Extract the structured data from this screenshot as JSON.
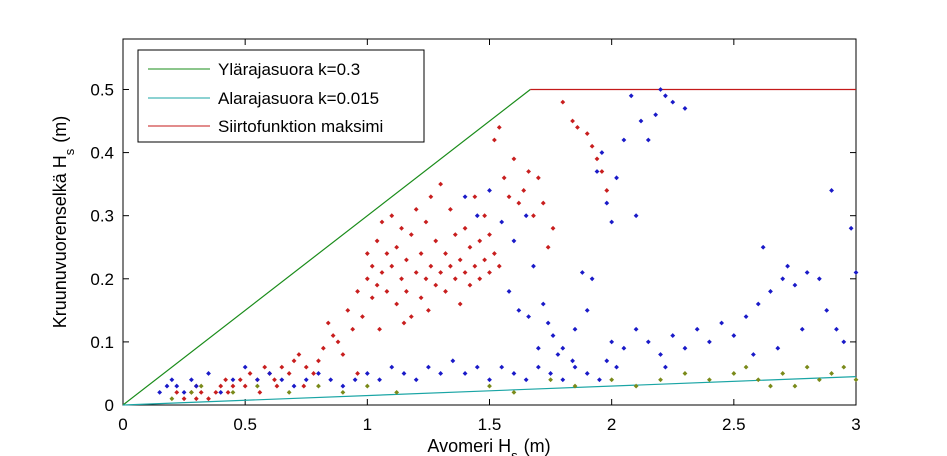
{
  "chart_data": {
    "type": "scatter",
    "title": "",
    "xlabel": "Avomeri H",
    "xlabel_sub": "s",
    "xlabel_unit": "(m)",
    "ylabel": "Kruunuvuorenselkä H",
    "ylabel_sub": "s",
    "ylabel_unit": "(m)",
    "xlim": [
      0,
      3
    ],
    "ylim": [
      0,
      0.58
    ],
    "xticks": [
      0,
      0.5,
      1,
      1.5,
      2,
      2.5,
      3
    ],
    "xtick_labels": [
      "0",
      "0.5",
      "1",
      "1.5",
      "2",
      "2.5",
      "3"
    ],
    "yticks": [
      0,
      0.1,
      0.2,
      0.3,
      0.4,
      0.5
    ],
    "ytick_labels": [
      "0",
      "0.1",
      "0.2",
      "0.3",
      "0.4",
      "0.5"
    ],
    "grid": false,
    "legend_position": "top-left",
    "lines": [
      {
        "name": "Ylärajasuora k=0.3",
        "color": "#1a8c1a",
        "x": [
          0,
          1.667
        ],
        "y": [
          0,
          0.5
        ]
      },
      {
        "name": "Alarajasuora k=0.015",
        "color": "#1aa5a5",
        "x": [
          0,
          3
        ],
        "y": [
          0,
          0.045
        ]
      },
      {
        "name": "Siirtofunktion maksimi",
        "color": "#c41a1a",
        "x": [
          1.667,
          3
        ],
        "y": [
          0.5,
          0.5
        ]
      }
    ],
    "scatter_series": [
      {
        "color": "#c81e1e",
        "points": [
          [
            0.22,
            0.02
          ],
          [
            0.25,
            0.01
          ],
          [
            0.28,
            0.02
          ],
          [
            0.3,
            0.01
          ],
          [
            0.32,
            0.02
          ],
          [
            0.35,
            0.01
          ],
          [
            0.38,
            0.02
          ],
          [
            0.4,
            0.03
          ],
          [
            0.42,
            0.04
          ],
          [
            0.45,
            0.03
          ],
          [
            0.48,
            0.04
          ],
          [
            0.5,
            0.03
          ],
          [
            0.52,
            0.05
          ],
          [
            0.55,
            0.04
          ],
          [
            0.58,
            0.06
          ],
          [
            0.6,
            0.05
          ],
          [
            0.62,
            0.04
          ],
          [
            0.65,
            0.06
          ],
          [
            0.68,
            0.05
          ],
          [
            0.7,
            0.07
          ],
          [
            0.72,
            0.08
          ],
          [
            0.75,
            0.06
          ],
          [
            0.78,
            0.05
          ],
          [
            0.8,
            0.07
          ],
          [
            0.82,
            0.09
          ],
          [
            0.84,
            0.13
          ],
          [
            0.86,
            0.11
          ],
          [
            0.88,
            0.1
          ],
          [
            0.9,
            0.08
          ],
          [
            0.92,
            0.15
          ],
          [
            0.94,
            0.12
          ],
          [
            0.96,
            0.18
          ],
          [
            0.98,
            0.14
          ],
          [
            1.0,
            0.2
          ],
          [
            1.0,
            0.24
          ],
          [
            1.02,
            0.17
          ],
          [
            1.02,
            0.22
          ],
          [
            1.04,
            0.19
          ],
          [
            1.04,
            0.26
          ],
          [
            1.06,
            0.21
          ],
          [
            1.06,
            0.29
          ],
          [
            1.08,
            0.18
          ],
          [
            1.08,
            0.24
          ],
          [
            1.1,
            0.22
          ],
          [
            1.1,
            0.3
          ],
          [
            1.12,
            0.16
          ],
          [
            1.12,
            0.25
          ],
          [
            1.14,
            0.2
          ],
          [
            1.14,
            0.28
          ],
          [
            1.16,
            0.18
          ],
          [
            1.16,
            0.23
          ],
          [
            1.18,
            0.14
          ],
          [
            1.18,
            0.27
          ],
          [
            1.2,
            0.21
          ],
          [
            1.2,
            0.31
          ],
          [
            1.22,
            0.17
          ],
          [
            1.22,
            0.24
          ],
          [
            1.24,
            0.2
          ],
          [
            1.24,
            0.29
          ],
          [
            1.26,
            0.22
          ],
          [
            1.26,
            0.33
          ],
          [
            1.28,
            0.19
          ],
          [
            1.28,
            0.26
          ],
          [
            1.3,
            0.21
          ],
          [
            1.3,
            0.35
          ],
          [
            1.32,
            0.18
          ],
          [
            1.32,
            0.24
          ],
          [
            1.34,
            0.22
          ],
          [
            1.34,
            0.31
          ],
          [
            1.36,
            0.2
          ],
          [
            1.36,
            0.27
          ],
          [
            1.38,
            0.23
          ],
          [
            1.38,
            0.16
          ],
          [
            1.4,
            0.21
          ],
          [
            1.4,
            0.28
          ],
          [
            1.42,
            0.19
          ],
          [
            1.42,
            0.25
          ],
          [
            1.44,
            0.22
          ],
          [
            1.44,
            0.33
          ],
          [
            1.46,
            0.2
          ],
          [
            1.46,
            0.26
          ],
          [
            1.48,
            0.23
          ],
          [
            1.48,
            0.3
          ],
          [
            1.5,
            0.21
          ],
          [
            1.5,
            0.27
          ],
          [
            1.52,
            0.24
          ],
          [
            1.52,
            0.42
          ],
          [
            1.54,
            0.44
          ],
          [
            1.54,
            0.22
          ],
          [
            1.56,
            0.36
          ],
          [
            1.58,
            0.33
          ],
          [
            1.6,
            0.39
          ],
          [
            1.62,
            0.32
          ],
          [
            1.64,
            0.34
          ],
          [
            1.66,
            0.37
          ],
          [
            1.68,
            0.3
          ],
          [
            1.7,
            0.36
          ],
          [
            1.72,
            0.32
          ],
          [
            1.74,
            0.25
          ],
          [
            1.76,
            0.28
          ],
          [
            1.8,
            0.48
          ],
          [
            1.84,
            0.45
          ],
          [
            1.86,
            0.44
          ],
          [
            1.9,
            0.43
          ],
          [
            1.92,
            0.41
          ],
          [
            1.94,
            0.39
          ],
          [
            1.96,
            0.37
          ],
          [
            1.98,
            0.34
          ],
          [
            0.3,
            0.03
          ],
          [
            0.43,
            0.02
          ],
          [
            0.56,
            0.02
          ],
          [
            0.63,
            0.03
          ],
          [
            0.74,
            0.03
          ],
          [
            0.96,
            0.05
          ],
          [
            1.05,
            0.12
          ],
          [
            1.15,
            0.13
          ],
          [
            1.25,
            0.15
          ]
        ]
      },
      {
        "color": "#1a1ac8",
        "points": [
          [
            0.15,
            0.02
          ],
          [
            0.18,
            0.03
          ],
          [
            0.2,
            0.04
          ],
          [
            0.22,
            0.03
          ],
          [
            0.25,
            0.02
          ],
          [
            0.28,
            0.04
          ],
          [
            0.3,
            0.03
          ],
          [
            0.35,
            0.05
          ],
          [
            0.4,
            0.02
          ],
          [
            0.45,
            0.04
          ],
          [
            0.5,
            0.06
          ],
          [
            0.55,
            0.04
          ],
          [
            0.6,
            0.05
          ],
          [
            0.65,
            0.04
          ],
          [
            0.7,
            0.03
          ],
          [
            0.75,
            0.04
          ],
          [
            0.8,
            0.05
          ],
          [
            0.85,
            0.04
          ],
          [
            0.9,
            0.03
          ],
          [
            0.95,
            0.04
          ],
          [
            1.0,
            0.05
          ],
          [
            1.05,
            0.04
          ],
          [
            1.1,
            0.06
          ],
          [
            1.15,
            0.05
          ],
          [
            1.2,
            0.04
          ],
          [
            1.25,
            0.06
          ],
          [
            1.3,
            0.05
          ],
          [
            1.35,
            0.07
          ],
          [
            1.4,
            0.05
          ],
          [
            1.45,
            0.06
          ],
          [
            1.5,
            0.04
          ],
          [
            1.55,
            0.06
          ],
          [
            1.6,
            0.05
          ],
          [
            1.65,
            0.04
          ],
          [
            1.7,
            0.06
          ],
          [
            1.75,
            0.05
          ],
          [
            1.8,
            0.04
          ],
          [
            1.85,
            0.06
          ],
          [
            1.9,
            0.05
          ],
          [
            1.95,
            0.04
          ],
          [
            1.4,
            0.33
          ],
          [
            1.45,
            0.3
          ],
          [
            1.5,
            0.34
          ],
          [
            1.55,
            0.29
          ],
          [
            1.6,
            0.26
          ],
          [
            1.65,
            0.3
          ],
          [
            1.68,
            0.22
          ],
          [
            1.72,
            0.16
          ],
          [
            1.74,
            0.13
          ],
          [
            1.76,
            0.11
          ],
          [
            1.8,
            0.09
          ],
          [
            1.85,
            0.12
          ],
          [
            1.88,
            0.21
          ],
          [
            1.9,
            0.15
          ],
          [
            1.92,
            0.2
          ],
          [
            1.94,
            0.37
          ],
          [
            1.96,
            0.4
          ],
          [
            1.98,
            0.32
          ],
          [
            2.0,
            0.29
          ],
          [
            2.02,
            0.36
          ],
          [
            2.05,
            0.42
          ],
          [
            2.08,
            0.49
          ],
          [
            2.1,
            0.3
          ],
          [
            2.12,
            0.45
          ],
          [
            2.15,
            0.42
          ],
          [
            2.18,
            0.46
          ],
          [
            2.2,
            0.5
          ],
          [
            2.22,
            0.49
          ],
          [
            2.25,
            0.48
          ],
          [
            2.3,
            0.47
          ],
          [
            2.0,
            0.1
          ],
          [
            2.05,
            0.09
          ],
          [
            2.1,
            0.12
          ],
          [
            2.15,
            0.1
          ],
          [
            2.2,
            0.08
          ],
          [
            2.25,
            0.11
          ],
          [
            2.3,
            0.09
          ],
          [
            2.35,
            0.12
          ],
          [
            2.4,
            0.1
          ],
          [
            2.45,
            0.13
          ],
          [
            2.5,
            0.11
          ],
          [
            2.55,
            0.14
          ],
          [
            2.6,
            0.16
          ],
          [
            2.65,
            0.18
          ],
          [
            2.7,
            0.2
          ],
          [
            2.72,
            0.22
          ],
          [
            2.75,
            0.19
          ],
          [
            2.8,
            0.21
          ],
          [
            2.85,
            0.2
          ],
          [
            2.9,
            0.34
          ],
          [
            2.92,
            0.12
          ],
          [
            2.95,
            0.1
          ],
          [
            2.98,
            0.28
          ],
          [
            3.0,
            0.21
          ],
          [
            2.58,
            0.08
          ],
          [
            2.68,
            0.09
          ],
          [
            2.78,
            0.12
          ],
          [
            2.88,
            0.15
          ],
          [
            2.62,
            0.25
          ],
          [
            2.22,
            0.06
          ],
          [
            1.58,
            0.18
          ],
          [
            1.62,
            0.15
          ],
          [
            1.66,
            0.14
          ],
          [
            1.7,
            0.09
          ],
          [
            1.78,
            0.08
          ],
          [
            1.84,
            0.07
          ],
          [
            1.98,
            0.07
          ],
          [
            2.02,
            0.06
          ]
        ]
      },
      {
        "color": "#7a8a1a",
        "points": [
          [
            0.2,
            0.01
          ],
          [
            0.28,
            0.02
          ],
          [
            0.32,
            0.03
          ],
          [
            0.45,
            0.02
          ],
          [
            0.55,
            0.03
          ],
          [
            0.68,
            0.02
          ],
          [
            0.8,
            0.03
          ],
          [
            0.9,
            0.02
          ],
          [
            1.0,
            0.03
          ],
          [
            1.12,
            0.02
          ],
          [
            1.5,
            0.03
          ],
          [
            1.6,
            0.02
          ],
          [
            1.75,
            0.04
          ],
          [
            1.85,
            0.03
          ],
          [
            2.0,
            0.04
          ],
          [
            2.1,
            0.03
          ],
          [
            2.2,
            0.04
          ],
          [
            2.3,
            0.05
          ],
          [
            2.4,
            0.04
          ],
          [
            2.5,
            0.05
          ],
          [
            2.6,
            0.04
          ],
          [
            2.7,
            0.05
          ],
          [
            2.75,
            0.03
          ],
          [
            2.8,
            0.06
          ],
          [
            2.85,
            0.04
          ],
          [
            2.9,
            0.05
          ],
          [
            2.95,
            0.06
          ],
          [
            3.0,
            0.04
          ],
          [
            2.65,
            0.03
          ],
          [
            2.55,
            0.06
          ]
        ]
      }
    ]
  }
}
